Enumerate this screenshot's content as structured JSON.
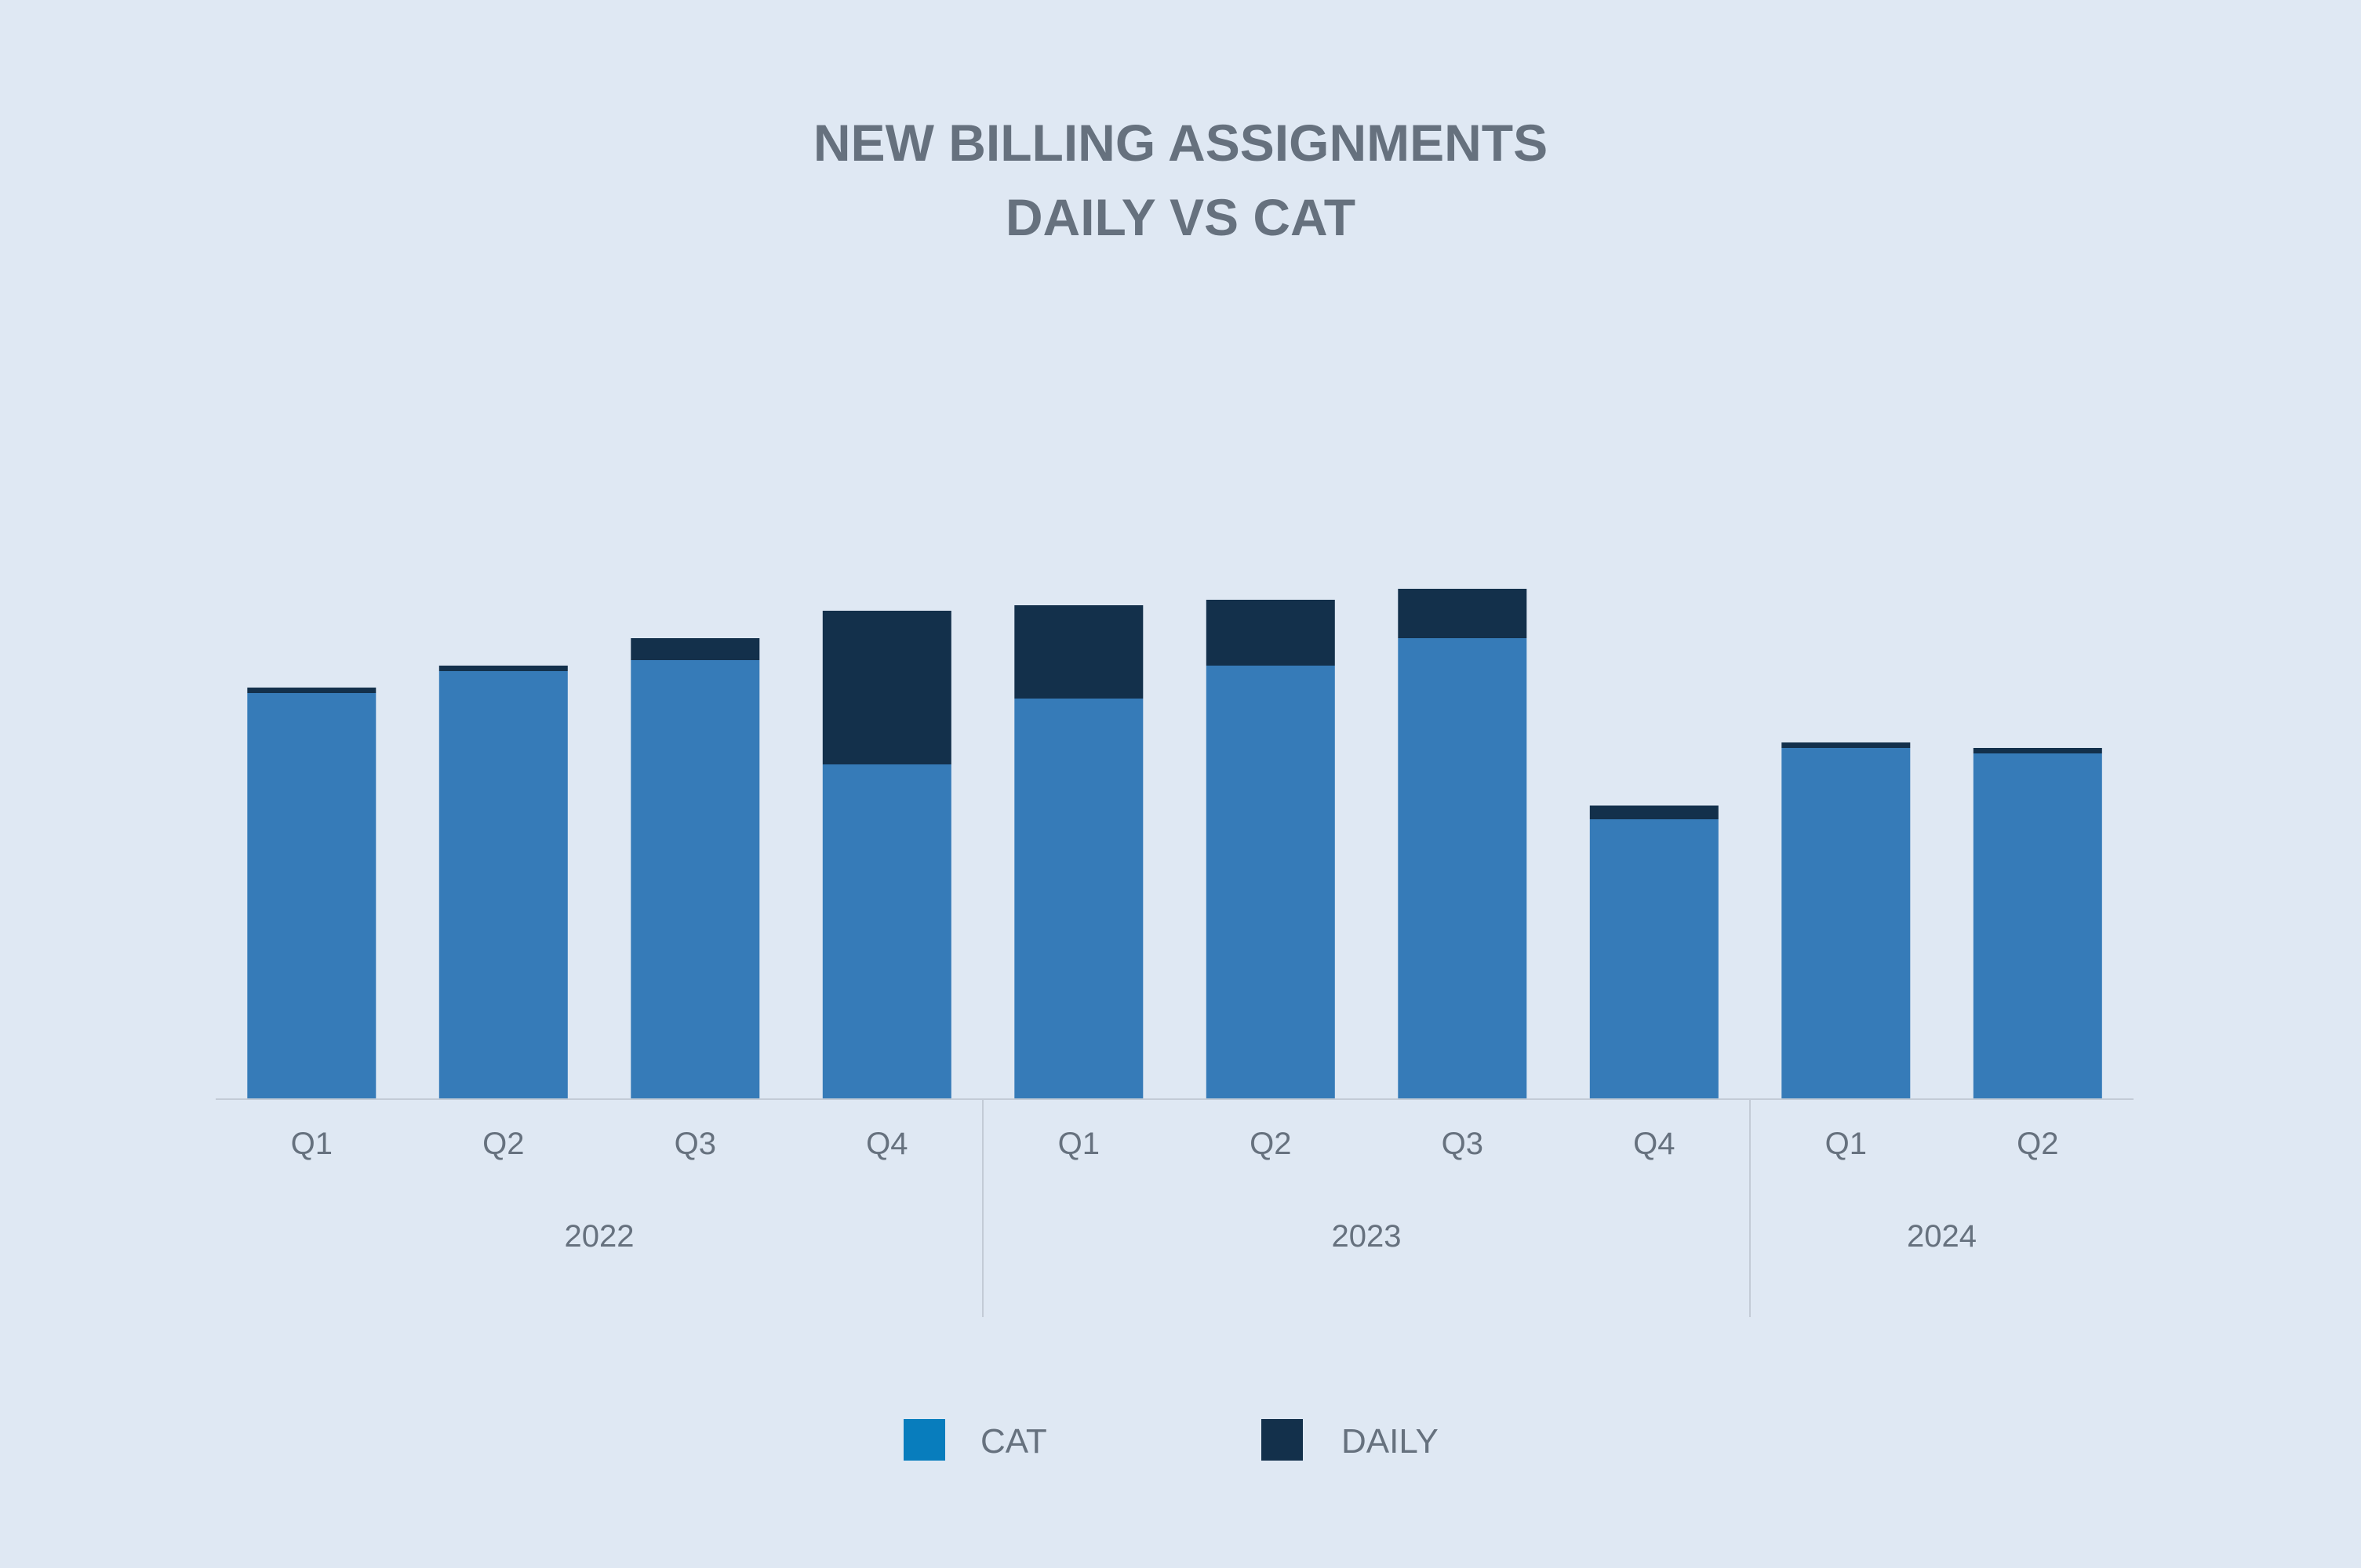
{
  "chart_data": {
    "type": "bar",
    "stacked": true,
    "title": [
      "NEW BILLING ASSIGNMENTS",
      "DAILY VS CAT"
    ],
    "xlabel": "",
    "ylabel": "",
    "categories": [
      "Q1",
      "Q2",
      "Q3",
      "Q4",
      "Q1",
      "Q2",
      "Q3",
      "Q4",
      "Q1",
      "Q2"
    ],
    "groups": [
      {
        "label": "2022",
        "count": 4
      },
      {
        "label": "2023",
        "count": 4
      },
      {
        "label": "2024",
        "count": 2
      }
    ],
    "series": [
      {
        "name": "CAT",
        "color": "#367bb8",
        "legend_color": "#087dbd",
        "values": [
          74,
          78,
          80,
          61,
          73,
          79,
          84,
          51,
          64,
          63
        ]
      },
      {
        "name": "DAILY",
        "color": "#13304b",
        "legend_color": "#13304b",
        "values": [
          1,
          1,
          4,
          28,
          17,
          12,
          9,
          2.5,
          1,
          1
        ]
      }
    ],
    "ylim": [
      0,
      100
    ],
    "grid": false,
    "legend_position": "bottom"
  }
}
